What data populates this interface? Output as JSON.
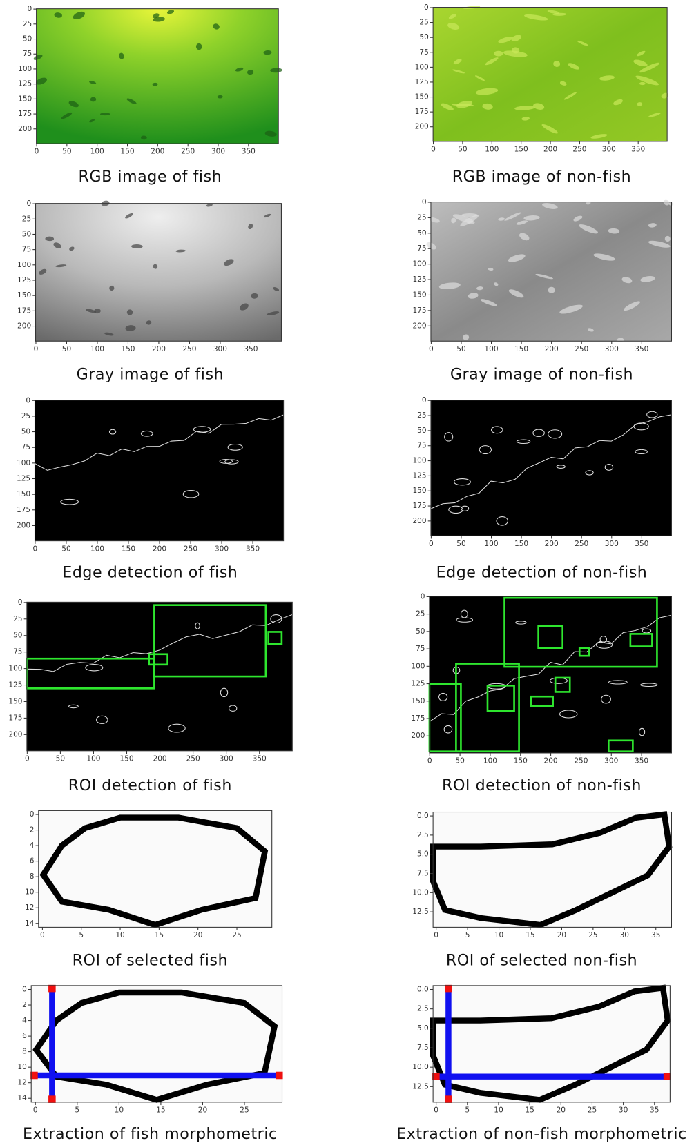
{
  "panels": [
    {
      "caption": "RGB image of fish",
      "xlim": [
        -0.5,
        399.5
      ],
      "ylim": [
        -0.5,
        224.5
      ],
      "xticks": [
        0,
        50,
        100,
        150,
        200,
        250,
        300,
        350
      ],
      "yticks": [
        0,
        25,
        50,
        75,
        100,
        125,
        150,
        175,
        200
      ]
    },
    {
      "caption": "RGB image of non-fish",
      "xlim": [
        -0.5,
        399.5
      ],
      "ylim": [
        -0.5,
        224.5
      ],
      "xticks": [
        0,
        50,
        100,
        150,
        200,
        250,
        300,
        350
      ],
      "yticks": [
        0,
        25,
        50,
        75,
        100,
        125,
        150,
        175,
        200
      ]
    },
    {
      "caption": "Gray image of fish",
      "xlim": [
        -0.5,
        399.5
      ],
      "ylim": [
        -0.5,
        224.5
      ],
      "xticks": [
        0,
        50,
        100,
        150,
        200,
        250,
        300,
        350
      ],
      "yticks": [
        0,
        25,
        50,
        75,
        100,
        125,
        150,
        175,
        200
      ]
    },
    {
      "caption": "Gray image of non-fish",
      "xlim": [
        -0.5,
        399.5
      ],
      "ylim": [
        -0.5,
        224.5
      ],
      "xticks": [
        0,
        50,
        100,
        150,
        200,
        250,
        300,
        350
      ],
      "yticks": [
        0,
        25,
        50,
        75,
        100,
        125,
        150,
        175,
        200
      ]
    },
    {
      "caption": "Edge detection of fish",
      "xlim": [
        -0.5,
        399.5
      ],
      "ylim": [
        -0.5,
        224.5
      ],
      "xticks": [
        0,
        50,
        100,
        150,
        200,
        250,
        300,
        350
      ],
      "yticks": [
        0,
        25,
        50,
        75,
        100,
        125,
        150,
        175,
        200
      ]
    },
    {
      "caption": "Edge detection of non-fish",
      "xlim": [
        -0.5,
        399.5
      ],
      "ylim": [
        -0.5,
        224.5
      ],
      "xticks": [
        0,
        50,
        100,
        150,
        200,
        250,
        300,
        350
      ],
      "yticks": [
        0,
        25,
        50,
        75,
        100,
        125,
        150,
        175,
        200
      ]
    },
    {
      "caption": "ROI detection of fish",
      "xlim": [
        -0.5,
        399.5
      ],
      "ylim": [
        -0.5,
        224.5
      ],
      "xticks": [
        0,
        50,
        100,
        150,
        200,
        250,
        300,
        350
      ],
      "yticks": [
        0,
        25,
        50,
        75,
        100,
        125,
        150,
        175,
        200
      ]
    },
    {
      "caption": "ROI detection of non-fish",
      "xlim": [
        -0.5,
        399.5
      ],
      "ylim": [
        -0.5,
        224.5
      ],
      "xticks": [
        0,
        50,
        100,
        150,
        200,
        250,
        300,
        350
      ],
      "yticks": [
        0,
        25,
        50,
        75,
        100,
        125,
        150,
        175,
        200
      ]
    },
    {
      "caption": "ROI of selected fish",
      "xlim": [
        -0.5,
        29.5
      ],
      "ylim": [
        -0.5,
        14.5
      ],
      "xticks": [
        0,
        5,
        10,
        15,
        20,
        25
      ],
      "yticks": [
        0,
        2,
        4,
        6,
        8,
        10,
        12,
        14
      ]
    },
    {
      "caption": "ROI of selected non-fish",
      "xlim": [
        -0.5,
        37.5
      ],
      "ylim": [
        -0.5,
        14.5
      ],
      "xticks": [
        0,
        5,
        10,
        15,
        20,
        25,
        30,
        35
      ],
      "yticks": [
        {
          "value": 0,
          "label": "0.0"
        },
        {
          "value": 2.5,
          "label": "2.5"
        },
        {
          "value": 5,
          "label": "5.0"
        },
        {
          "value": 7.5,
          "label": "7.5"
        },
        {
          "value": 10,
          "label": "10.0"
        },
        {
          "value": 12.5,
          "label": "12.5"
        }
      ]
    },
    {
      "caption": "Extraction of fish morphometric",
      "xlim": [
        -0.5,
        29.5
      ],
      "ylim": [
        -0.5,
        14.5
      ],
      "xticks": [
        0,
        5,
        10,
        15,
        20,
        25
      ],
      "yticks": [
        0,
        2,
        4,
        6,
        8,
        10,
        12,
        14
      ]
    },
    {
      "caption": "Extraction of non-fish morphometric",
      "xlim": [
        -0.5,
        37.5
      ],
      "ylim": [
        -0.5,
        14.5
      ],
      "xticks": [
        0,
        5,
        10,
        15,
        20,
        25,
        30,
        35
      ],
      "yticks": [
        {
          "value": 0,
          "label": "0.0"
        },
        {
          "value": 2.5,
          "label": "2.5"
        },
        {
          "value": 5,
          "label": "5.0"
        },
        {
          "value": 7.5,
          "label": "7.5"
        },
        {
          "value": 10,
          "label": "10.0"
        },
        {
          "value": 12.5,
          "label": "12.5"
        }
      ]
    }
  ]
}
